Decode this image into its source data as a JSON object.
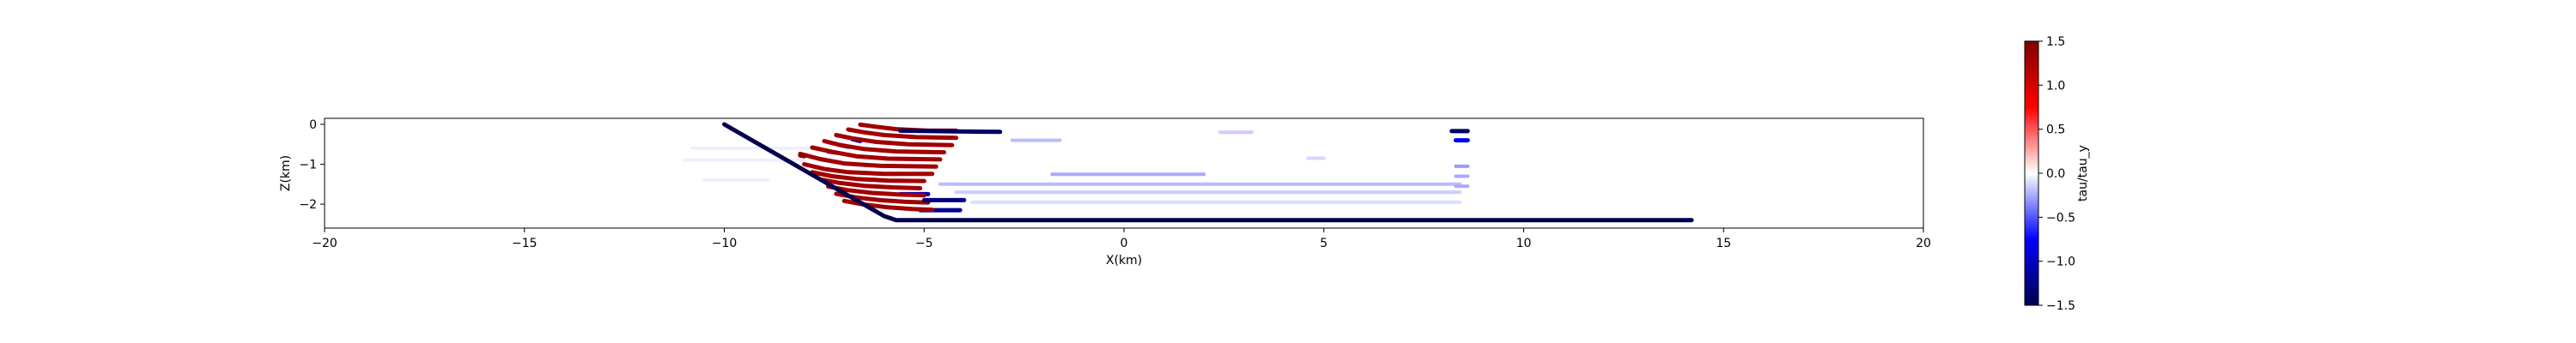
{
  "chart_data": {
    "type": "line",
    "title": "",
    "xlabel": "X(km)",
    "ylabel": "Z(km)",
    "xlim": [
      -20,
      20
    ],
    "ylim": [
      -2.6,
      0.15
    ],
    "xticks": [
      -20,
      -15,
      -10,
      -5,
      0,
      5,
      10,
      15,
      20
    ],
    "xtick_labels": [
      "−20",
      "−15",
      "−10",
      "−5",
      "0",
      "5",
      "10",
      "15",
      "20"
    ],
    "yticks": [
      0,
      -1,
      -2
    ],
    "ytick_labels": [
      "0",
      "−1",
      "−2"
    ],
    "grid": false,
    "legend": "none",
    "fault": {
      "x": [
        -10.0,
        -6.0,
        -5.7,
        14.2
      ],
      "y": [
        0.0,
        -2.3,
        -2.4,
        -2.4
      ],
      "tau_ratio": -1.5
    },
    "rupture_strands": [
      {
        "x": [
          -6.6,
          -6.2,
          -5.7,
          -4.9,
          -4.2
        ],
        "y": [
          -0.01,
          -0.06,
          -0.12,
          -0.16,
          -0.16
        ],
        "tau_ratio": 1.3
      },
      {
        "x": [
          -6.9,
          -6.5,
          -6.0,
          -5.2,
          -4.2
        ],
        "y": [
          -0.13,
          -0.2,
          -0.27,
          -0.32,
          -0.34
        ],
        "tau_ratio": 1.3
      },
      {
        "x": [
          -7.2,
          -6.8,
          -6.2,
          -5.4,
          -4.3
        ],
        "y": [
          -0.27,
          -0.35,
          -0.44,
          -0.5,
          -0.52
        ],
        "tau_ratio": 1.3
      },
      {
        "x": [
          -7.5,
          -7.1,
          -6.5,
          -5.7,
          -4.5
        ],
        "y": [
          -0.42,
          -0.52,
          -0.62,
          -0.68,
          -0.7
        ],
        "tau_ratio": 1.3
      },
      {
        "x": [
          -7.8,
          -7.3,
          -6.7,
          -5.9,
          -4.6
        ],
        "y": [
          -0.58,
          -0.69,
          -0.8,
          -0.86,
          -0.88
        ],
        "tau_ratio": 1.3
      },
      {
        "x": [
          -8.1,
          -7.6,
          -7.0,
          -6.1,
          -4.7
        ],
        "y": [
          -0.74,
          -0.87,
          -0.98,
          -1.04,
          -1.06
        ],
        "tau_ratio": 1.3
      },
      {
        "x": [
          -8.0,
          -7.5,
          -6.9,
          -6.0,
          -4.8
        ],
        "y": [
          -1.0,
          -1.12,
          -1.2,
          -1.24,
          -1.24
        ],
        "tau_ratio": 1.3
      },
      {
        "x": [
          -7.8,
          -7.3,
          -6.7,
          -5.9,
          -5.0
        ],
        "y": [
          -1.2,
          -1.3,
          -1.37,
          -1.41,
          -1.42
        ],
        "tau_ratio": 1.3
      },
      {
        "x": [
          -7.6,
          -7.1,
          -6.5,
          -5.8,
          -5.1
        ],
        "y": [
          -1.38,
          -1.47,
          -1.54,
          -1.58,
          -1.6
        ],
        "tau_ratio": 1.3
      },
      {
        "x": [
          -7.4,
          -6.9,
          -6.3,
          -5.6,
          -5.0
        ],
        "y": [
          -1.56,
          -1.65,
          -1.72,
          -1.76,
          -1.78
        ],
        "tau_ratio": 1.3
      },
      {
        "x": [
          -7.2,
          -6.7,
          -6.1,
          -5.5,
          -4.9
        ],
        "y": [
          -1.74,
          -1.83,
          -1.9,
          -1.94,
          -1.96
        ],
        "tau_ratio": 1.3
      },
      {
        "x": [
          -7.0,
          -6.5,
          -5.9,
          -5.3,
          -4.8
        ],
        "y": [
          -1.92,
          -2.01,
          -2.08,
          -2.12,
          -2.14
        ],
        "tau_ratio": 1.3
      },
      {
        "x": [
          -5.6,
          -4.8,
          -4.0,
          -3.1
        ],
        "y": [
          -0.16,
          -0.17,
          -0.18,
          -0.19
        ],
        "tau_ratio": -1.4
      },
      {
        "x": [
          -5.0,
          -4.5,
          -4.0
        ],
        "y": [
          -1.9,
          -1.9,
          -1.9
        ],
        "tau_ratio": -1.3
      },
      {
        "x": [
          -5.1,
          -4.6,
          -4.1
        ],
        "y": [
          -2.15,
          -2.15,
          -2.15
        ],
        "tau_ratio": -1.2
      },
      {
        "x": [
          -5.6,
          -5.2,
          -4.9
        ],
        "y": [
          -1.75,
          -1.75,
          -1.75
        ],
        "tau_ratio": -1.0
      },
      {
        "x": [
          -6.8,
          -6.6
        ],
        "y": [
          -0.37,
          -0.42
        ],
        "tau_ratio": -1.0
      },
      {
        "x": [
          -7.1,
          -6.9
        ],
        "y": [
          -0.52,
          -0.56
        ],
        "tau_ratio": -1.0
      },
      {
        "x": [
          -7.4,
          -7.2
        ],
        "y": [
          -0.68,
          -0.71
        ],
        "tau_ratio": -0.9
      },
      {
        "x": [
          -8.1,
          -8.0
        ],
        "y": [
          -0.78,
          -0.8
        ],
        "tau_ratio": 1.4
      },
      {
        "x": [
          8.2,
          8.5,
          8.6
        ],
        "y": [
          -0.17,
          -0.17,
          -0.17
        ],
        "tau_ratio": -1.4
      },
      {
        "x": [
          8.3,
          8.6
        ],
        "y": [
          -0.4,
          -0.4
        ],
        "tau_ratio": -0.8
      },
      {
        "x": [
          8.3,
          8.6
        ],
        "y": [
          -1.05,
          -1.05
        ],
        "tau_ratio": -0.3
      },
      {
        "x": [
          8.3,
          8.6
        ],
        "y": [
          -1.3,
          -1.3
        ],
        "tau_ratio": -0.25
      },
      {
        "x": [
          8.3,
          8.6
        ],
        "y": [
          -1.55,
          -1.55
        ],
        "tau_ratio": -0.25
      },
      {
        "x": [
          -4.6,
          -2.0,
          2.0,
          8.4
        ],
        "y": [
          -1.5,
          -1.5,
          -1.5,
          -1.5
        ],
        "tau_ratio": -0.2
      },
      {
        "x": [
          -4.2,
          -1.0,
          3.0,
          8.4
        ],
        "y": [
          -1.7,
          -1.7,
          -1.7,
          -1.7
        ],
        "tau_ratio": -0.15
      },
      {
        "x": [
          -2.8,
          -1.6
        ],
        "y": [
          -0.4,
          -0.4
        ],
        "tau_ratio": -0.2
      },
      {
        "x": [
          -1.8,
          0.0,
          2.0
        ],
        "y": [
          -1.25,
          -1.25,
          -1.25
        ],
        "tau_ratio": -0.25
      },
      {
        "x": [
          -3.8,
          -1.0,
          4.0,
          8.4
        ],
        "y": [
          -1.95,
          -1.95,
          -1.95,
          -1.95
        ],
        "tau_ratio": -0.1
      },
      {
        "x": [
          2.4,
          3.2
        ],
        "y": [
          -0.2,
          -0.2
        ],
        "tau_ratio": -0.15
      },
      {
        "x": [
          4.6,
          5.0
        ],
        "y": [
          -0.85,
          -0.85
        ],
        "tau_ratio": -0.12
      },
      {
        "x": [
          -10.8,
          -9.2,
          -7.8
        ],
        "y": [
          -0.6,
          -0.6,
          -0.6
        ],
        "tau_ratio": -0.05
      },
      {
        "x": [
          -11.0,
          -9.5,
          -8.0
        ],
        "y": [
          -0.9,
          -0.9,
          -0.9
        ],
        "tau_ratio": -0.05
      },
      {
        "x": [
          -10.5,
          -8.9
        ],
        "y": [
          -1.4,
          -1.4
        ],
        "tau_ratio": -0.05
      }
    ],
    "colorbar": {
      "label": "tau/tau_y",
      "range": [
        -1.5,
        1.5
      ],
      "ticks": [
        1.5,
        1.0,
        0.5,
        0.0,
        -0.5,
        -1.0,
        -1.5
      ],
      "tick_labels": [
        "1.5",
        "1.0",
        "0.5",
        "0.0",
        "−0.5",
        "−1.0",
        "−1.5"
      ],
      "colormap": "seismic"
    }
  }
}
